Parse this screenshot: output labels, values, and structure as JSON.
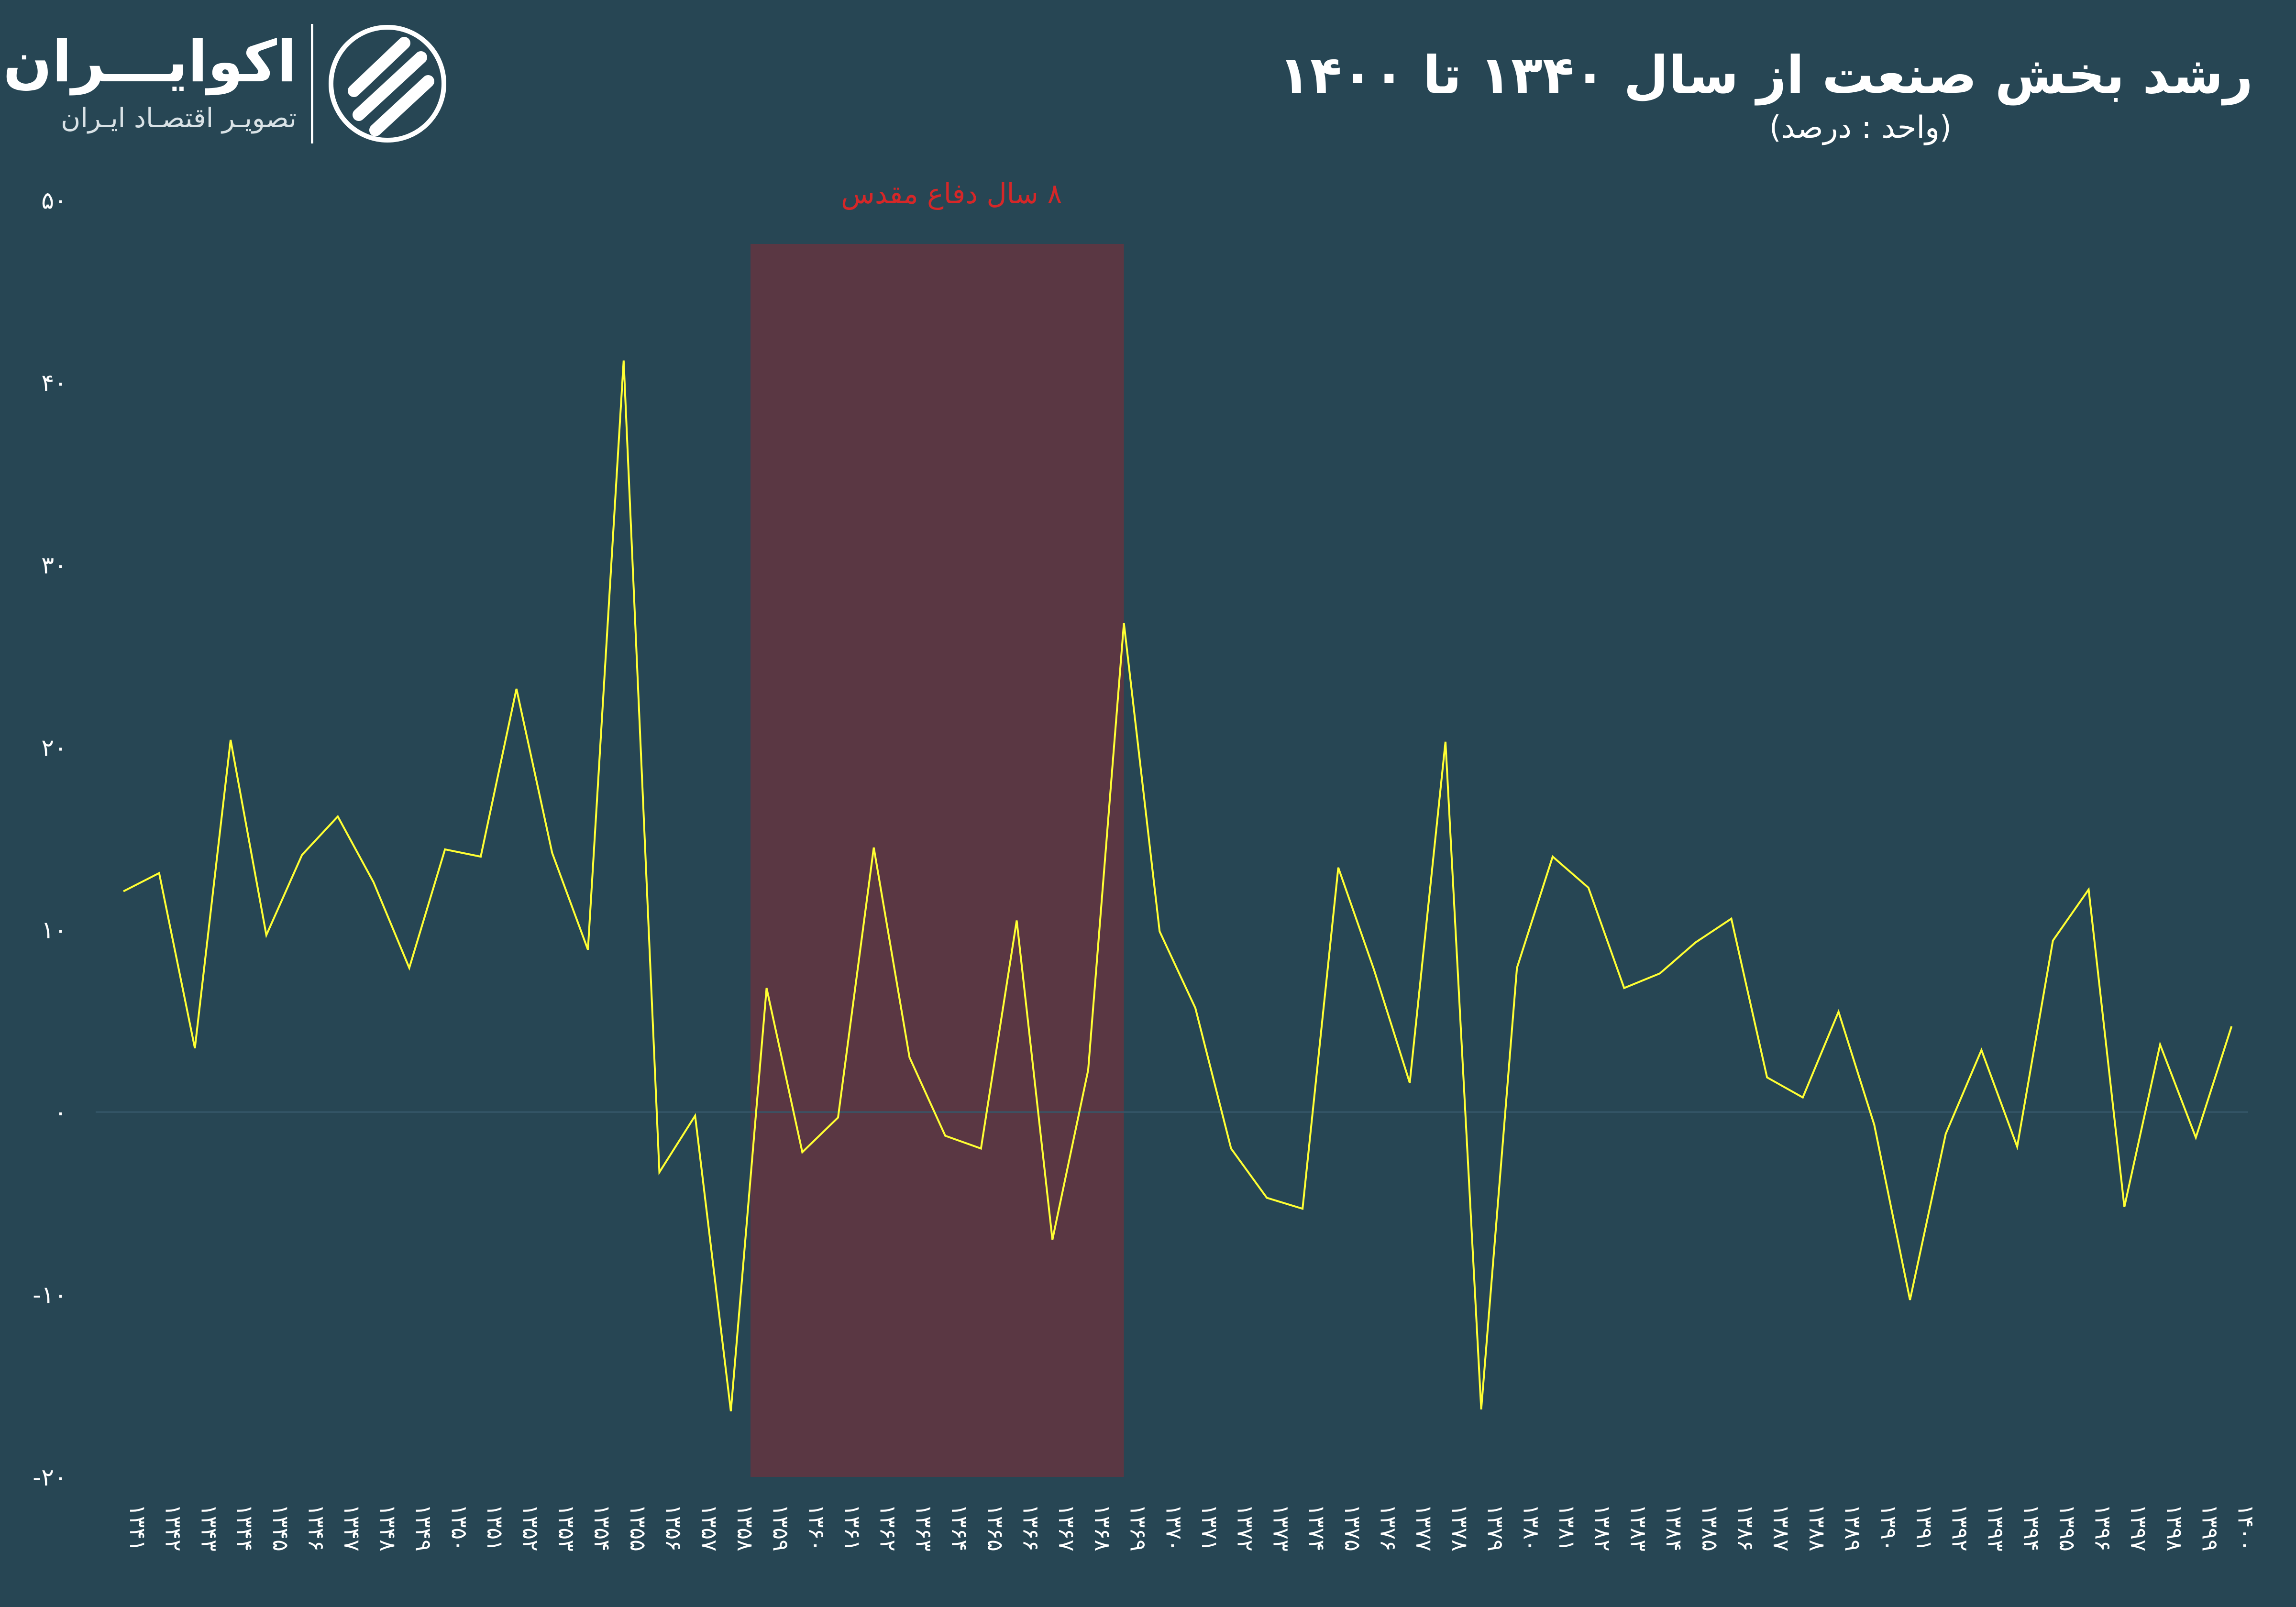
{
  "header": {
    "title": "رشد بخش صنعت از سال ۱۳۴۰ تا ۱۴۰۰",
    "subtitle": "(واحد : درصد)"
  },
  "logo": {
    "name": "اکوایـــران",
    "tagline": "تصویـر اقتصـاد ایـران"
  },
  "colors": {
    "background": "#274654",
    "line": "#ffff33",
    "war_band": "#5a3743",
    "war_label": "#d62728",
    "axis_text": "#ffffff"
  },
  "chart_data": {
    "type": "line",
    "title": "رشد بخش صنعت از سال ۱۳۴۰ تا ۱۴۰۰",
    "ylim": [
      -20,
      50
    ],
    "yticks": [
      -20,
      -10,
      0,
      10,
      20,
      30,
      40,
      50
    ],
    "ytick_labels": [
      "-۲۰",
      "-۱۰",
      "۰",
      "۱۰",
      "۲۰",
      "۳۰",
      "۴۰",
      "۵۰"
    ],
    "grid": false,
    "categories": [
      "۱۳۴۱",
      "۱۳۴۲",
      "۱۳۴۳",
      "۱۳۴۴",
      "۱۳۴۵",
      "۱۳۴۶",
      "۱۳۴۷",
      "۱۳۴۸",
      "۱۳۴۹",
      "۱۳۵۰",
      "۱۳۵۱",
      "۱۳۵۲",
      "۱۳۵۳",
      "۱۳۵۴",
      "۱۳۵۵",
      "۱۳۵۶",
      "۱۳۵۷",
      "۱۳۵۸",
      "۱۳۵۹",
      "۱۳۶۰",
      "۱۳۶۱",
      "۱۳۶۲",
      "۱۳۶۳",
      "۱۳۶۴",
      "۱۳۶۵",
      "۱۳۶۶",
      "۱۳۶۷",
      "۱۳۶۸",
      "۱۳۶۹",
      "۱۳۷۰",
      "۱۳۷۱",
      "۱۳۷۲",
      "۱۳۷۳",
      "۱۳۷۴",
      "۱۳۷۵",
      "۱۳۷۶",
      "۱۳۷۷",
      "۱۳۷۸",
      "۱۳۷۹",
      "۱۳۸۰",
      "۱۳۸۱",
      "۱۳۸۲",
      "۱۳۸۳",
      "۱۳۸۴",
      "۱۳۸۵",
      "۱۳۸۶",
      "۱۳۸۷",
      "۱۳۸۸",
      "۱۳۸۹",
      "۱۳۹۰",
      "۱۳۹۱",
      "۱۳۹۲",
      "۱۳۹۳",
      "۱۳۹۴",
      "۱۳۹۵",
      "۱۳۹۶",
      "۱۳۹۷",
      "۱۳۹۸",
      "۱۳۹۹",
      "۱۴۰۰"
    ],
    "values": [
      12.1,
      13.1,
      3.5,
      20.4,
      9.7,
      14.1,
      16.2,
      12.6,
      7.9,
      14.4,
      14.0,
      23.2,
      14.2,
      8.9,
      41.2,
      -3.3,
      -0.2,
      -16.4,
      6.8,
      -2.2,
      -0.3,
      14.5,
      3.0,
      -1.3,
      -2.0,
      10.5,
      -7.0,
      2.3,
      26.8,
      9.9,
      5.7,
      -2.0,
      -4.7,
      -5.3,
      13.4,
      7.8,
      1.6,
      20.3,
      -16.3,
      7.9,
      14.0,
      12.3,
      6.8,
      7.6,
      9.3,
      10.6,
      1.9,
      0.8,
      5.5,
      -0.7,
      -10.3,
      -1.2,
      3.4,
      -1.9,
      9.4,
      12.2,
      -5.2,
      3.7,
      -1.4,
      4.7
    ],
    "annotations": [
      {
        "text": "۸ سال دفاع مقدس",
        "from": "۱۳۵۹",
        "to": "۱۳۶۹"
      }
    ]
  }
}
